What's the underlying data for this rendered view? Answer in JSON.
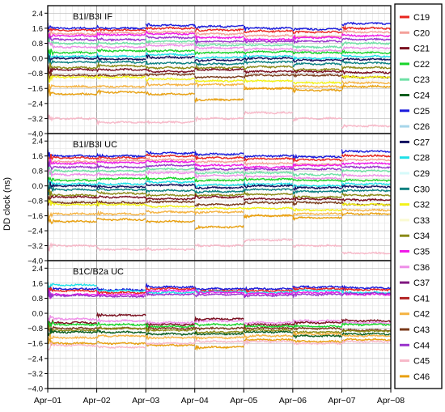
{
  "chart_data": {
    "type": "line",
    "ylabel": "DD clock (ns)",
    "x": [
      "Apr−01",
      "Apr−02",
      "Apr−03",
      "Apr−04",
      "Apr−05",
      "Apr−06",
      "Apr−07",
      "Apr−08"
    ],
    "y_ticks": [
      "2.4",
      "1.6",
      "0.8",
      "0.0",
      "−0.8",
      "−1.6",
      "−2.4",
      "−3.2",
      "−4.0"
    ],
    "ylim": [
      -4.0,
      2.8
    ],
    "grid": true,
    "legend_position": "right",
    "legend": [
      {
        "name": "C19",
        "color": "#e8251f"
      },
      {
        "name": "C20",
        "color": "#f4a09a"
      },
      {
        "name": "C21",
        "color": "#7a1020"
      },
      {
        "name": "C22",
        "color": "#18d42a"
      },
      {
        "name": "C23",
        "color": "#6fe0a6"
      },
      {
        "name": "C24",
        "color": "#0b5e1e"
      },
      {
        "name": "C25",
        "color": "#1a1adc"
      },
      {
        "name": "C26",
        "color": "#a6d6ea"
      },
      {
        "name": "C27",
        "color": "#101060"
      },
      {
        "name": "C28",
        "color": "#1fe0e8"
      },
      {
        "name": "C29",
        "color": "#d6fafa"
      },
      {
        "name": "C30",
        "color": "#0a8080"
      },
      {
        "name": "C32",
        "color": "#f2f21a"
      },
      {
        "name": "C33",
        "color": "#fafad2"
      },
      {
        "name": "C34",
        "color": "#8a8a16"
      },
      {
        "name": "C35",
        "color": "#f01ae8"
      },
      {
        "name": "C36",
        "color": "#ee8ee8"
      },
      {
        "name": "C37",
        "color": "#801880"
      },
      {
        "name": "C41",
        "color": "#b22222"
      },
      {
        "name": "C42",
        "color": "#f5b342"
      },
      {
        "name": "C43",
        "color": "#7a3a1a"
      },
      {
        "name": "C44",
        "color": "#9932cc"
      },
      {
        "name": "C45",
        "color": "#f7b8c8"
      },
      {
        "name": "C46",
        "color": "#e8a010"
      }
    ],
    "panels": [
      {
        "title": "B1I/B3I IF",
        "series": [
          {
            "sat": "C25",
            "values": [
              1.6,
              1.6,
              1.75,
              1.7,
              1.6,
              1.55,
              1.85
            ]
          },
          {
            "sat": "C19",
            "values": [
              1.5,
              1.5,
              1.6,
              1.5,
              1.45,
              1.4,
              1.6
            ]
          },
          {
            "sat": "C20",
            "values": [
              1.3,
              1.35,
              1.4,
              1.3,
              1.2,
              1.15,
              1.4
            ]
          },
          {
            "sat": "C35",
            "values": [
              1.2,
              1.25,
              1.3,
              1.1,
              1.0,
              1.1,
              1.2
            ]
          },
          {
            "sat": "C44",
            "values": [
              1.0,
              1.0,
              1.1,
              0.9,
              0.9,
              0.9,
              1.0
            ]
          },
          {
            "sat": "C23",
            "values": [
              0.8,
              0.8,
              0.9,
              0.7,
              0.7,
              0.6,
              0.8
            ]
          },
          {
            "sat": "C36",
            "values": [
              0.6,
              0.6,
              0.7,
              0.55,
              0.5,
              0.4,
              0.55
            ]
          },
          {
            "sat": "C22",
            "values": [
              0.3,
              0.4,
              0.4,
              0.3,
              0.35,
              0.3,
              0.3
            ]
          },
          {
            "sat": "C28",
            "values": [
              0.1,
              0.1,
              0.2,
              0.05,
              0.1,
              0.0,
              0.1
            ]
          },
          {
            "sat": "C27",
            "values": [
              0.0,
              -0.05,
              0.05,
              -0.1,
              0.0,
              -0.1,
              -0.05
            ]
          },
          {
            "sat": "C30",
            "values": [
              -0.2,
              -0.2,
              -0.25,
              -0.3,
              -0.2,
              -0.3,
              -0.25
            ]
          },
          {
            "sat": "C34",
            "values": [
              -0.5,
              -0.4,
              -0.5,
              -0.5,
              -0.45,
              -0.6,
              -0.5
            ]
          },
          {
            "sat": "C21",
            "values": [
              -0.6,
              -0.6,
              -0.7,
              -0.6,
              -0.7,
              -0.7,
              -0.75
            ]
          },
          {
            "sat": "C43",
            "values": [
              -0.9,
              -0.9,
              -0.85,
              -1.0,
              -0.9,
              -0.9,
              -1.0
            ]
          },
          {
            "sat": "C32",
            "values": [
              -1.0,
              -1.0,
              -1.1,
              -1.2,
              -1.2,
              -1.3,
              -1.0
            ]
          },
          {
            "sat": "C42",
            "values": [
              -1.5,
              -1.5,
              -1.4,
              -1.4,
              -1.6,
              -1.5,
              -1.3
            ]
          },
          {
            "sat": "C46",
            "values": [
              -1.9,
              -1.8,
              -1.9,
              -2.2,
              -1.6,
              -1.7,
              -1.5
            ]
          },
          {
            "sat": "C45",
            "values": [
              -3.2,
              -3.4,
              -3.4,
              -3.2,
              -2.9,
              -3.2,
              -3.6
            ]
          }
        ]
      },
      {
        "title": "B1I/B3I UC",
        "series": [
          {
            "sat": "C25",
            "values": [
              1.6,
              1.6,
              1.75,
              1.7,
              1.6,
              1.55,
              1.85
            ]
          },
          {
            "sat": "C19",
            "values": [
              1.5,
              1.5,
              1.6,
              1.5,
              1.45,
              1.4,
              1.6
            ]
          },
          {
            "sat": "C20",
            "values": [
              1.3,
              1.35,
              1.4,
              1.3,
              1.2,
              1.15,
              1.4
            ]
          },
          {
            "sat": "C35",
            "values": [
              1.2,
              1.25,
              1.3,
              1.1,
              1.0,
              1.1,
              1.2
            ]
          },
          {
            "sat": "C44",
            "values": [
              1.0,
              1.0,
              1.1,
              0.9,
              0.9,
              0.9,
              1.0
            ]
          },
          {
            "sat": "C23",
            "values": [
              0.8,
              0.8,
              0.9,
              0.7,
              0.7,
              0.6,
              0.8
            ]
          },
          {
            "sat": "C36",
            "values": [
              0.6,
              0.6,
              0.7,
              0.55,
              0.5,
              0.4,
              0.55
            ]
          },
          {
            "sat": "C22",
            "values": [
              0.3,
              0.4,
              0.4,
              0.3,
              0.35,
              0.3,
              0.3
            ]
          },
          {
            "sat": "C28",
            "values": [
              0.1,
              0.1,
              0.2,
              0.05,
              0.1,
              0.0,
              0.1
            ]
          },
          {
            "sat": "C27",
            "values": [
              0.0,
              -0.05,
              0.05,
              -0.1,
              0.0,
              -0.1,
              -0.05
            ]
          },
          {
            "sat": "C30",
            "values": [
              -0.2,
              -0.2,
              -0.25,
              -0.3,
              -0.2,
              -0.3,
              -0.25
            ]
          },
          {
            "sat": "C34",
            "values": [
              -0.5,
              -0.4,
              -0.5,
              -0.5,
              -0.45,
              -0.6,
              -0.5
            ]
          },
          {
            "sat": "C21",
            "values": [
              -0.6,
              -0.6,
              -0.7,
              -0.6,
              -0.7,
              -0.7,
              -0.75
            ]
          },
          {
            "sat": "C43",
            "values": [
              -0.9,
              -0.9,
              -0.85,
              -1.0,
              -0.9,
              -0.9,
              -1.0
            ]
          },
          {
            "sat": "C32",
            "values": [
              -1.0,
              -1.0,
              -1.1,
              -1.2,
              -1.2,
              -1.3,
              -1.0
            ]
          },
          {
            "sat": "C42",
            "values": [
              -1.5,
              -1.5,
              -1.4,
              -1.4,
              -1.6,
              -1.5,
              -1.3
            ]
          },
          {
            "sat": "C46",
            "values": [
              -1.9,
              -1.8,
              -1.9,
              -2.2,
              -1.6,
              -1.7,
              -1.5
            ]
          },
          {
            "sat": "C45",
            "values": [
              -3.2,
              -3.4,
              -3.4,
              -3.2,
              -2.9,
              -3.2,
              -3.6
            ]
          }
        ]
      },
      {
        "title": "B1C/B2a UC",
        "series": [
          {
            "sat": "C25",
            "values": [
              1.3,
              1.25,
              1.4,
              1.3,
              1.3,
              1.4,
              1.35
            ]
          },
          {
            "sat": "C19",
            "values": [
              1.2,
              1.1,
              1.3,
              1.2,
              1.2,
              1.3,
              1.25
            ]
          },
          {
            "sat": "C28",
            "values": [
              1.5,
              1.2,
              1.1,
              1.15,
              1.1,
              1.2,
              1.1
            ]
          },
          {
            "sat": "C35",
            "values": [
              1.0,
              1.0,
              1.2,
              1.1,
              1.05,
              1.1,
              1.0
            ]
          },
          {
            "sat": "C44",
            "values": [
              0.95,
              0.9,
              1.0,
              1.0,
              0.95,
              1.0,
              1.05
            ]
          },
          {
            "sat": "C36",
            "values": [
              -0.3,
              -0.4,
              -0.5,
              -0.4,
              -0.5,
              -0.4,
              -0.5
            ]
          },
          {
            "sat": "C21",
            "values": [
              -0.5,
              -0.1,
              -0.6,
              -0.3,
              -0.6,
              -0.5,
              -0.4
            ]
          },
          {
            "sat": "C22",
            "values": [
              -0.6,
              -0.6,
              -0.7,
              -0.6,
              -0.7,
              -0.7,
              -0.6
            ]
          },
          {
            "sat": "C43",
            "values": [
              -0.8,
              -0.8,
              -0.8,
              -0.8,
              -0.8,
              -0.8,
              -0.9
            ]
          },
          {
            "sat": "C34",
            "values": [
              -0.9,
              -0.8,
              -0.9,
              -1.0,
              -0.9,
              -1.0,
              -0.95
            ]
          },
          {
            "sat": "C24",
            "values": [
              -1.0,
              -1.0,
              -1.1,
              -1.1,
              -1.0,
              -1.2,
              -1.1
            ]
          },
          {
            "sat": "C42",
            "values": [
              -1.3,
              -1.2,
              -1.3,
              -1.3,
              -1.2,
              -1.1,
              -1.2
            ]
          },
          {
            "sat": "C46",
            "values": [
              -1.6,
              -1.6,
              -1.7,
              -1.8,
              -1.4,
              -1.5,
              -1.4
            ]
          },
          {
            "sat": "C45",
            "values": [
              -1.7,
              -1.8,
              -1.6,
              -1.5,
              -1.5,
              -1.6,
              -1.5
            ]
          }
        ]
      }
    ]
  }
}
